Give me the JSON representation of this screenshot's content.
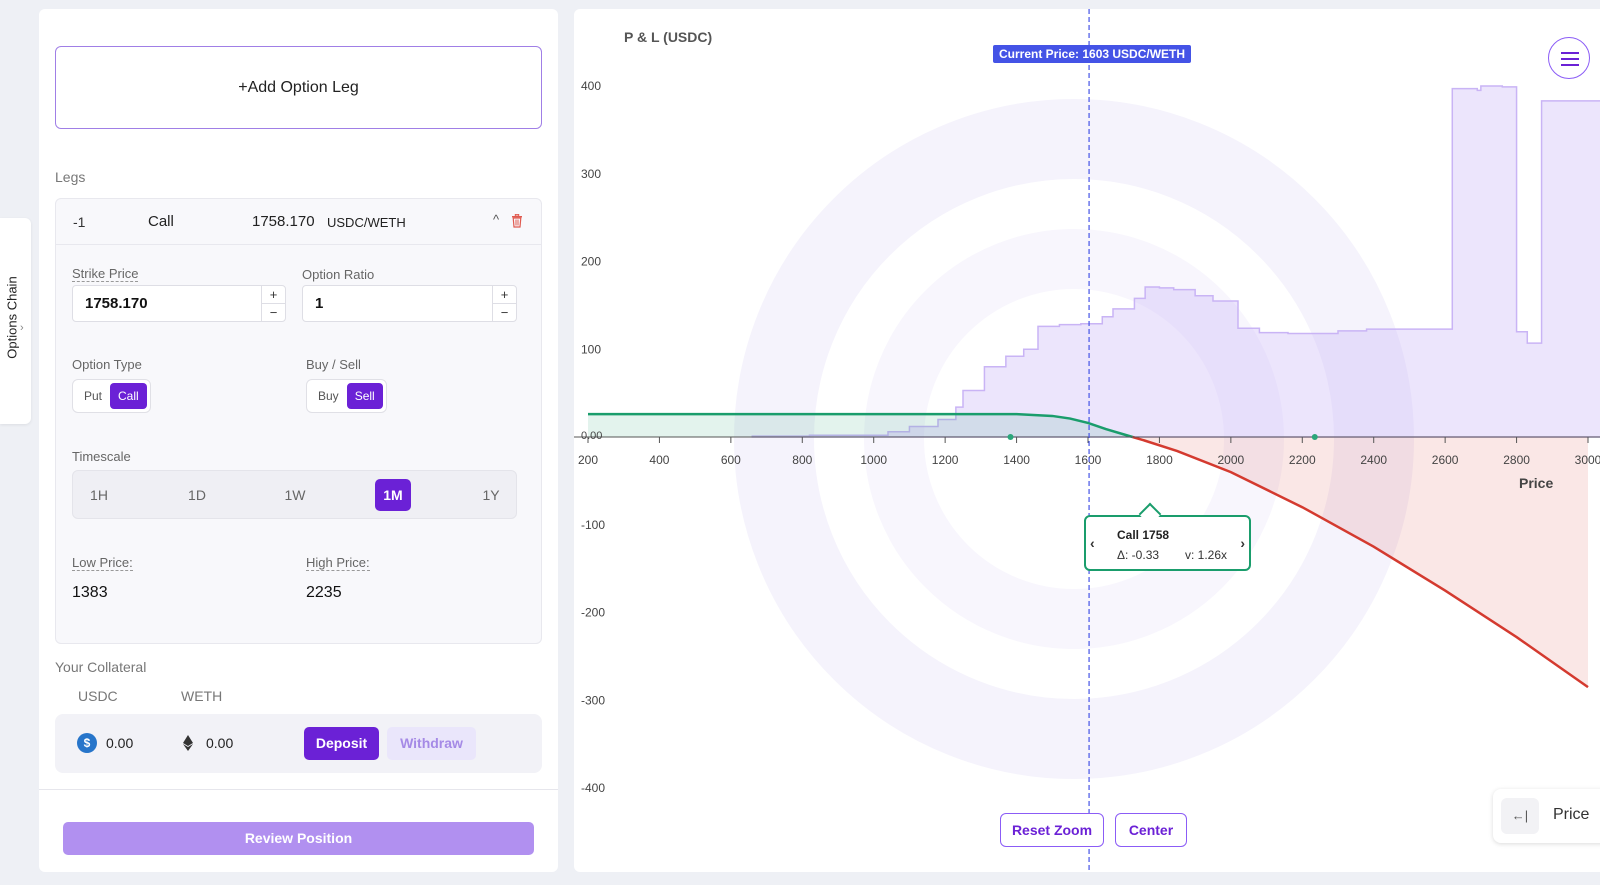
{
  "options_chain": {
    "label": "Options Chain",
    "chevron": "›"
  },
  "builder": {
    "add_leg_label": "+Add Option Leg",
    "legs_title": "Legs",
    "leg": {
      "quantity": "-1",
      "type": "Call",
      "strike": "1758.170",
      "pair": "USDC/WETH",
      "collapse_glyph": "^",
      "strike_label": "Strike Price",
      "strike_value": "1758.170",
      "ratio_label": "Option Ratio",
      "ratio_value": "1",
      "plus": "+",
      "minus": "−",
      "option_type_label": "Option Type",
      "option_types": [
        "Put",
        "Call"
      ],
      "option_type_selected": "Call",
      "side_label": "Buy / Sell",
      "sides": [
        "Buy",
        "Sell"
      ],
      "side_selected": "Sell",
      "timescale_label": "Timescale",
      "timescales": [
        "1H",
        "1D",
        "1W",
        "1M",
        "1Y"
      ],
      "timescale_selected": "1M",
      "low_price_label": "Low Price:",
      "low_price": "1383",
      "high_price_label": "High Price:",
      "high_price": "2235"
    },
    "collateral": {
      "title": "Your Collateral",
      "usdc_label": "USDC",
      "weth_label": "WETH",
      "usdc_icon": "$",
      "usdc_value": "0.00",
      "weth_value": "0.00",
      "deposit_label": "Deposit",
      "withdraw_label": "Withdraw"
    },
    "review_label": "Review Position"
  },
  "chart": {
    "current_price_label": "Current Price: 1603 USDC/WETH",
    "x_unit_label": "Price",
    "tooltip": {
      "title": "Call 1758",
      "delta": "Δ: -0.33",
      "vol": "v: 1.26x",
      "prev": "‹",
      "next": "›"
    },
    "reset_zoom_label": "Reset Zoom",
    "center_label": "Center",
    "price_toggle_icon": "←|",
    "price_toggle_label": "Price",
    "colors": {
      "profit": "#1a9d6c",
      "loss": "#d43a2f",
      "current": "#4453e6",
      "volume": "#c9b4f5"
    }
  },
  "chart_data": {
    "type": "line",
    "title": "P & L (USDC)",
    "xlabel": "Price",
    "ylabel": "P & L (USDC)",
    "xlim": [
      200,
      3000
    ],
    "ylim": [
      -400,
      400
    ],
    "x_ticks": [
      200,
      400,
      600,
      800,
      1000,
      1200,
      1400,
      1600,
      1800,
      2000,
      2200,
      2400,
      2600,
      2800,
      3000
    ],
    "y_ticks": [
      400,
      300,
      200,
      100,
      -100,
      -200,
      -300,
      -400
    ],
    "y_zero_label": "0.00",
    "current_price": 1603,
    "low_marker": 1383,
    "high_marker": 2235,
    "series": [
      {
        "name": "P&L",
        "x": [
          200,
          1300,
          1400,
          1500,
          1550,
          1600,
          1650,
          1700,
          1758,
          1850,
          2000,
          2200,
          2400,
          2600,
          2800,
          3000
        ],
        "y": [
          26,
          26,
          26,
          24,
          21,
          16,
          9,
          3,
          -4,
          -16,
          -40,
          -80,
          -125,
          -175,
          -228,
          -285
        ]
      },
      {
        "name": "volume",
        "x": [
          660,
          820,
          1040,
          1100,
          1180,
          1230,
          1250,
          1310,
          1370,
          1420,
          1460,
          1520,
          1580,
          1640,
          1670,
          1730,
          1760,
          1800,
          1840,
          1900,
          1950,
          2020,
          2080,
          2160,
          2240,
          2300,
          2380,
          2500,
          2540,
          2600,
          2620,
          2690,
          2700,
          2740,
          2760,
          2800,
          2830,
          2870
        ],
        "y": [
          1,
          2,
          6,
          12,
          20,
          34,
          53,
          80,
          92,
          100,
          126,
          128,
          129,
          137,
          146,
          158,
          171,
          170,
          168,
          161,
          155,
          124,
          119,
          118,
          118,
          121,
          123,
          123,
          123,
          123,
          397,
          395,
          400,
          400,
          399,
          120,
          107,
          383
        ]
      }
    ]
  }
}
